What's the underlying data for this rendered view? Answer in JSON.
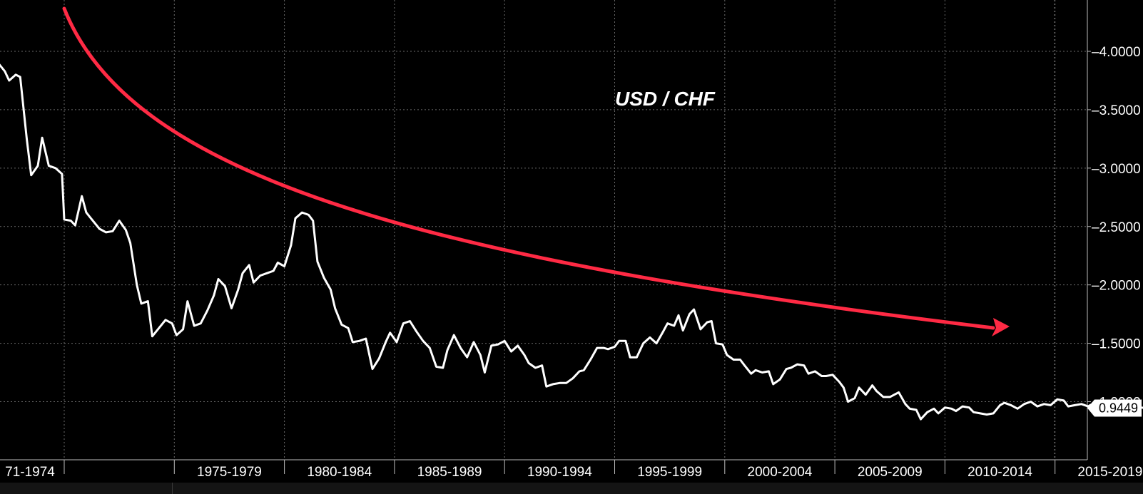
{
  "chart_data": {
    "type": "line",
    "title": "USD / CHF",
    "x_tick_labels": [
      "71-1974",
      "1975-1979",
      "1980-1984",
      "1985-1989",
      "1990-1994",
      "1995-1999",
      "2000-2004",
      "2005-2009",
      "2010-2014",
      "2015-2019"
    ],
    "x_range": [
      1971.0,
      2020.8
    ],
    "ylim": [
      0.6,
      4.4
    ],
    "y_ticks": [
      "4.0000",
      "3.5000",
      "3.0000",
      "2.5000",
      "2.0000",
      "1.5000",
      "1.0000"
    ],
    "grid": true,
    "last_value_label": "0.9449",
    "colors": {
      "background": "#000000",
      "line": "#ffffff",
      "trend_arrow": "#ff2a44",
      "grid": "#6a6a6a"
    },
    "series": [
      {
        "values": [
          [
            1971.0,
            3.9
          ],
          [
            1971.3,
            3.83
          ],
          [
            1971.5,
            3.75
          ],
          [
            1971.8,
            3.8
          ],
          [
            1972.0,
            3.78
          ],
          [
            1972.3,
            3.25
          ],
          [
            1972.5,
            2.94
          ],
          [
            1972.8,
            3.02
          ],
          [
            1973.0,
            3.26
          ],
          [
            1973.3,
            3.02
          ],
          [
            1973.6,
            3.0
          ],
          [
            1973.9,
            2.95
          ],
          [
            1974.0,
            2.56
          ],
          [
            1974.3,
            2.55
          ],
          [
            1974.5,
            2.51
          ],
          [
            1974.8,
            2.76
          ],
          [
            1975.0,
            2.62
          ],
          [
            1975.3,
            2.55
          ],
          [
            1975.6,
            2.48
          ],
          [
            1975.9,
            2.45
          ],
          [
            1976.2,
            2.46
          ],
          [
            1976.5,
            2.55
          ],
          [
            1976.8,
            2.47
          ],
          [
            1977.0,
            2.36
          ],
          [
            1977.3,
            2.0
          ],
          [
            1977.5,
            1.84
          ],
          [
            1977.8,
            1.86
          ],
          [
            1978.0,
            1.56
          ],
          [
            1978.3,
            1.63
          ],
          [
            1978.6,
            1.7
          ],
          [
            1978.9,
            1.67
          ],
          [
            1979.1,
            1.57
          ],
          [
            1979.4,
            1.62
          ],
          [
            1979.6,
            1.86
          ],
          [
            1979.9,
            1.65
          ],
          [
            1980.2,
            1.67
          ],
          [
            1980.5,
            1.78
          ],
          [
            1980.8,
            1.91
          ],
          [
            1981.0,
            2.05
          ],
          [
            1981.3,
            1.99
          ],
          [
            1981.6,
            1.8
          ],
          [
            1981.9,
            1.96
          ],
          [
            1982.1,
            2.1
          ],
          [
            1982.4,
            2.17
          ],
          [
            1982.6,
            2.02
          ],
          [
            1982.9,
            2.08
          ],
          [
            1983.2,
            2.1
          ],
          [
            1983.5,
            2.12
          ],
          [
            1983.7,
            2.19
          ],
          [
            1984.0,
            2.16
          ],
          [
            1984.3,
            2.34
          ],
          [
            1984.5,
            2.57
          ],
          [
            1984.8,
            2.62
          ],
          [
            1985.1,
            2.6
          ],
          [
            1985.3,
            2.55
          ],
          [
            1985.5,
            2.2
          ],
          [
            1985.8,
            2.06
          ],
          [
            1986.1,
            1.96
          ],
          [
            1986.3,
            1.8
          ],
          [
            1986.6,
            1.66
          ],
          [
            1986.9,
            1.63
          ],
          [
            1987.1,
            1.51
          ],
          [
            1987.4,
            1.52
          ],
          [
            1987.7,
            1.54
          ],
          [
            1988.0,
            1.28
          ],
          [
            1988.3,
            1.37
          ],
          [
            1988.6,
            1.51
          ],
          [
            1988.8,
            1.59
          ],
          [
            1989.1,
            1.51
          ],
          [
            1989.4,
            1.67
          ],
          [
            1989.7,
            1.69
          ],
          [
            1990.0,
            1.6
          ],
          [
            1990.3,
            1.52
          ],
          [
            1990.6,
            1.46
          ],
          [
            1990.9,
            1.3
          ],
          [
            1991.2,
            1.29
          ],
          [
            1991.4,
            1.44
          ],
          [
            1991.7,
            1.57
          ],
          [
            1992.0,
            1.46
          ],
          [
            1992.3,
            1.38
          ],
          [
            1992.6,
            1.51
          ],
          [
            1992.9,
            1.4
          ],
          [
            1993.1,
            1.25
          ],
          [
            1993.4,
            1.48
          ],
          [
            1993.7,
            1.49
          ],
          [
            1994.0,
            1.52
          ],
          [
            1994.3,
            1.43
          ],
          [
            1994.6,
            1.48
          ],
          [
            1994.9,
            1.4
          ],
          [
            1995.1,
            1.33
          ],
          [
            1995.4,
            1.29
          ],
          [
            1995.7,
            1.31
          ],
          [
            1995.9,
            1.13
          ],
          [
            1996.2,
            1.15
          ],
          [
            1996.5,
            1.16
          ],
          [
            1996.8,
            1.16
          ],
          [
            1997.1,
            1.2
          ],
          [
            1997.4,
            1.26
          ],
          [
            1997.6,
            1.27
          ],
          [
            1997.9,
            1.36
          ],
          [
            1998.2,
            1.46
          ],
          [
            1998.5,
            1.46
          ],
          [
            1998.7,
            1.45
          ],
          [
            1999.0,
            1.47
          ],
          [
            1999.2,
            1.52
          ],
          [
            1999.5,
            1.52
          ],
          [
            1999.7,
            1.38
          ],
          [
            2000.0,
            1.38
          ],
          [
            2000.3,
            1.5
          ],
          [
            2000.6,
            1.55
          ],
          [
            2000.9,
            1.5
          ],
          [
            2001.2,
            1.6
          ],
          [
            2001.4,
            1.67
          ],
          [
            2001.7,
            1.65
          ],
          [
            2001.9,
            1.74
          ],
          [
            2002.1,
            1.61
          ],
          [
            2002.4,
            1.75
          ],
          [
            2002.6,
            1.79
          ],
          [
            2002.9,
            1.62
          ],
          [
            2003.2,
            1.68
          ],
          [
            2003.4,
            1.69
          ],
          [
            2003.6,
            1.5
          ],
          [
            2003.9,
            1.49
          ],
          [
            2004.1,
            1.4
          ],
          [
            2004.4,
            1.36
          ],
          [
            2004.7,
            1.36
          ],
          [
            2004.9,
            1.31
          ],
          [
            2005.2,
            1.24
          ],
          [
            2005.4,
            1.27
          ],
          [
            2005.7,
            1.25
          ],
          [
            2006.0,
            1.26
          ],
          [
            2006.2,
            1.15
          ],
          [
            2006.5,
            1.19
          ],
          [
            2006.8,
            1.28
          ],
          [
            2007.0,
            1.29
          ],
          [
            2007.3,
            1.32
          ],
          [
            2007.6,
            1.31
          ],
          [
            2007.8,
            1.24
          ],
          [
            2008.1,
            1.26
          ],
          [
            2008.4,
            1.22
          ],
          [
            2008.6,
            1.22
          ],
          [
            2008.9,
            1.23
          ],
          [
            2009.2,
            1.17
          ],
          [
            2009.4,
            1.12
          ],
          [
            2009.6,
            1.0
          ],
          [
            2009.9,
            1.03
          ],
          [
            2010.1,
            1.12
          ],
          [
            2010.4,
            1.06
          ],
          [
            2010.7,
            1.14
          ],
          [
            2010.9,
            1.09
          ],
          [
            2011.2,
            1.04
          ],
          [
            2011.5,
            1.04
          ],
          [
            2011.7,
            1.06
          ],
          [
            2011.9,
            1.08
          ],
          [
            2012.2,
            0.98
          ],
          [
            2012.4,
            0.94
          ],
          [
            2012.7,
            0.93
          ],
          [
            2012.9,
            0.85
          ],
          [
            2013.2,
            0.91
          ],
          [
            2013.5,
            0.94
          ],
          [
            2013.7,
            0.9
          ],
          [
            2014.0,
            0.95
          ],
          [
            2014.3,
            0.94
          ],
          [
            2014.5,
            0.92
          ],
          [
            2014.8,
            0.96
          ],
          [
            2015.1,
            0.95
          ],
          [
            2015.3,
            0.91
          ],
          [
            2015.6,
            0.9
          ],
          [
            2015.9,
            0.89
          ],
          [
            2016.2,
            0.9
          ],
          [
            2016.5,
            0.97
          ],
          [
            2016.7,
            0.99
          ],
          [
            2017.0,
            0.97
          ],
          [
            2017.3,
            0.94
          ],
          [
            2017.6,
            0.98
          ],
          [
            2017.9,
            1.0
          ],
          [
            2018.2,
            0.96
          ],
          [
            2018.5,
            0.98
          ],
          [
            2018.8,
            0.97
          ],
          [
            2019.1,
            1.02
          ],
          [
            2019.4,
            1.01
          ],
          [
            2019.6,
            0.96
          ],
          [
            2019.9,
            0.97
          ],
          [
            2020.2,
            0.98
          ],
          [
            2020.5,
            0.96
          ],
          [
            2020.8,
            0.99
          ],
          [
            2021.1,
            0.98
          ],
          [
            2021.4,
            0.99
          ],
          [
            2021.7,
            0.97
          ],
          [
            2022.0,
            1.0
          ],
          [
            2022.3,
            0.98
          ],
          [
            2022.6,
            0.96
          ],
          [
            2022.9,
            0.95
          ],
          [
            2023.2,
            0.944
          ]
        ]
      }
    ]
  }
}
